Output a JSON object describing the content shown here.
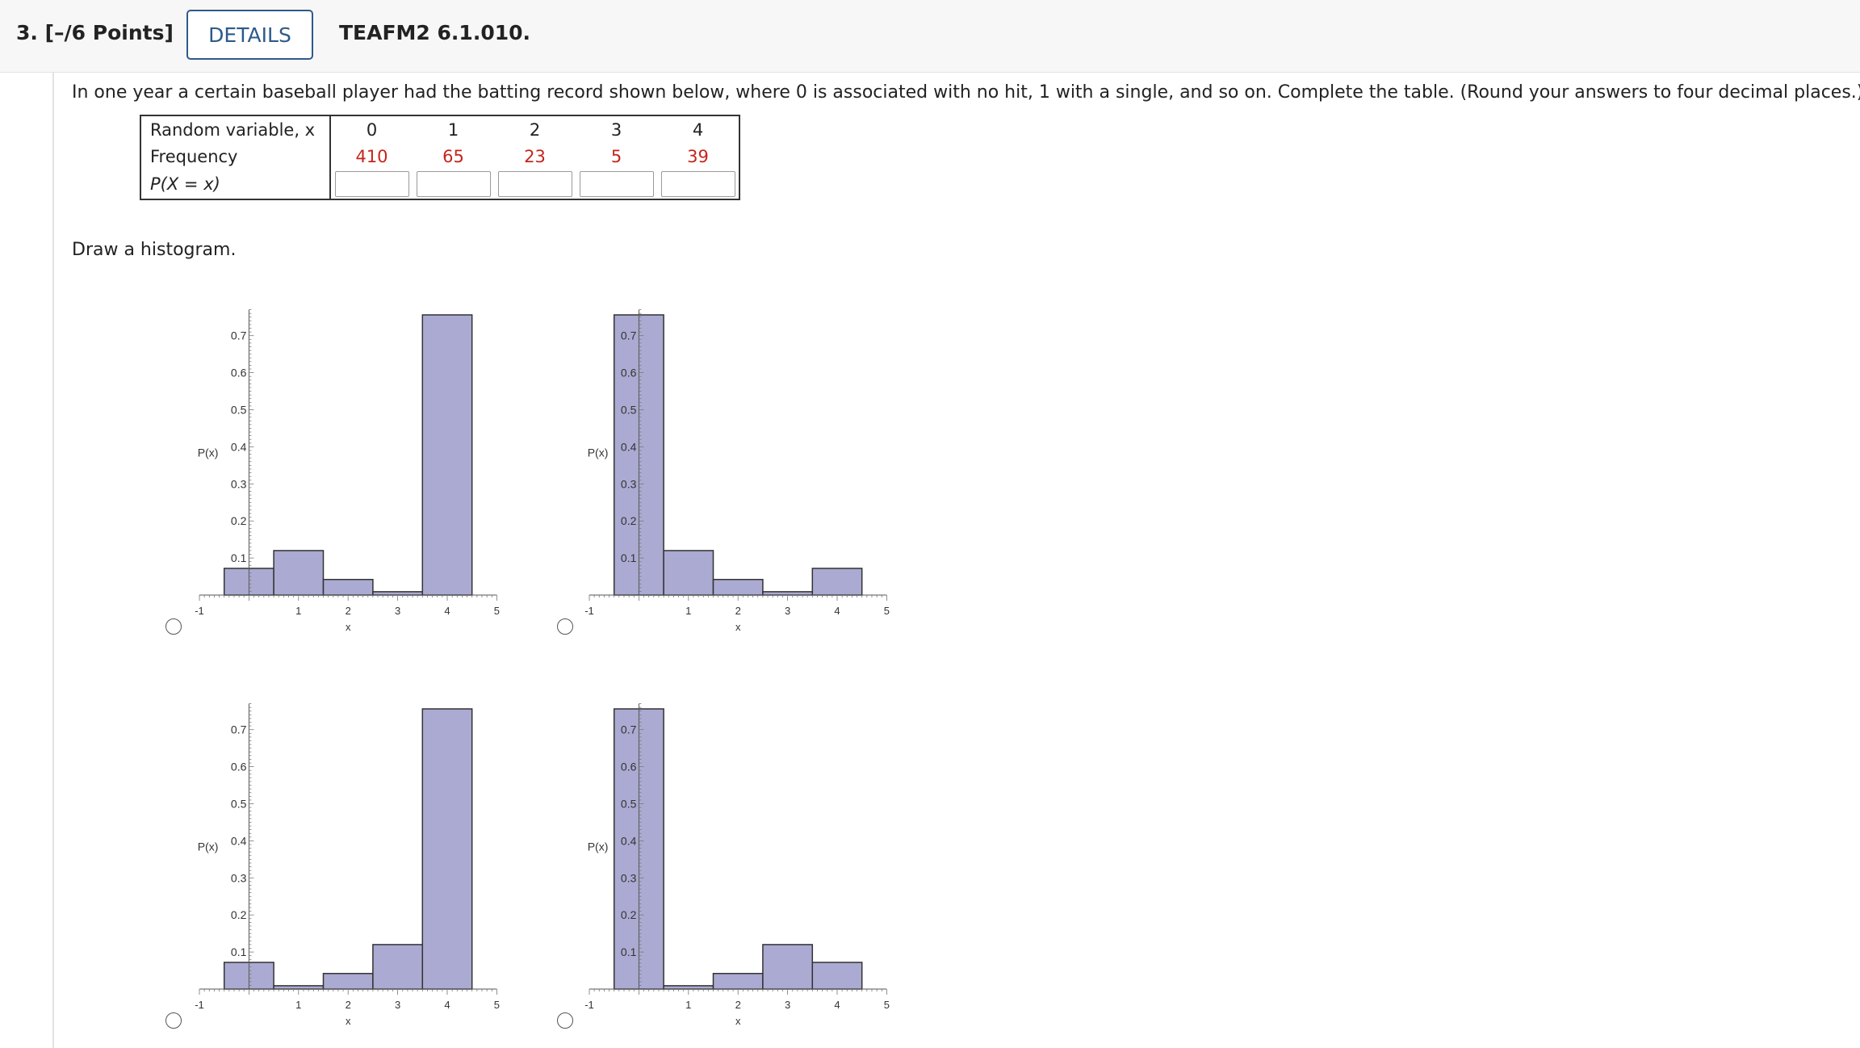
{
  "header": {
    "question_label": "3. [–/6 Points]",
    "details_label": "DETAILS",
    "question_id": "TEAFM2 6.1.010."
  },
  "instructions": "In one year a certain baseball player had the batting record shown below, where 0 is associated with no hit, 1 with a single, and so on. Complete the table. (Round your answers to four decimal places.)",
  "table": {
    "row_headers": {
      "random_variable": "Random variable, x",
      "frequency": "Frequency",
      "probability": "P(X = x)"
    },
    "x_values": [
      "0",
      "1",
      "2",
      "3",
      "4"
    ],
    "frequencies": [
      "410",
      "65",
      "23",
      "5",
      "39"
    ],
    "probability_inputs": [
      "",
      "",
      "",
      "",
      ""
    ]
  },
  "draw_prompt": "Draw a histogram.",
  "colors": {
    "bar_fill": "#abaad2",
    "bar_stroke": "#333333",
    "frequency_text": "#c5251c",
    "details_border": "#2d5a8a"
  },
  "chart_data": [
    {
      "type": "bar",
      "option": "A",
      "bin_edges": [
        -0.5,
        0.5,
        1.5,
        2.5,
        3.5,
        4.5
      ],
      "values": [
        0.072,
        0.12,
        0.042,
        0.009,
        0.756
      ],
      "xlabel": "x",
      "ylabel": "P(x)",
      "xlim": [
        -1,
        5
      ],
      "ylim": [
        0,
        0.77
      ],
      "x_ticks": [
        "-1",
        "1",
        "2",
        "3",
        "4",
        "5"
      ],
      "y_ticks": [
        "0.1",
        "0.2",
        "0.3",
        "0.4",
        "0.5",
        "0.6",
        "0.7"
      ]
    },
    {
      "type": "bar",
      "option": "B",
      "bin_edges": [
        -0.5,
        0.5,
        1.5,
        2.5,
        3.5,
        4.5
      ],
      "values": [
        0.756,
        0.12,
        0.042,
        0.009,
        0.072
      ],
      "xlabel": "x",
      "ylabel": "P(x)",
      "xlim": [
        -1,
        5
      ],
      "ylim": [
        0,
        0.77
      ],
      "x_ticks": [
        "-1",
        "1",
        "2",
        "3",
        "4",
        "5"
      ],
      "y_ticks": [
        "0.1",
        "0.2",
        "0.3",
        "0.4",
        "0.5",
        "0.6",
        "0.7"
      ]
    },
    {
      "type": "bar",
      "option": "C",
      "bin_edges": [
        -0.5,
        0.5,
        1.5,
        2.5,
        3.5,
        4.5
      ],
      "values": [
        0.072,
        0.009,
        0.042,
        0.12,
        0.756
      ],
      "xlabel": "x",
      "ylabel": "P(x)",
      "xlim": [
        -1,
        5
      ],
      "ylim": [
        0,
        0.77
      ],
      "x_ticks": [
        "-1",
        "1",
        "2",
        "3",
        "4",
        "5"
      ],
      "y_ticks": [
        "0.1",
        "0.2",
        "0.3",
        "0.4",
        "0.5",
        "0.6",
        "0.7"
      ]
    },
    {
      "type": "bar",
      "option": "D",
      "bin_edges": [
        -0.5,
        0.5,
        1.5,
        2.5,
        3.5,
        4.5
      ],
      "values": [
        0.756,
        0.009,
        0.042,
        0.12,
        0.072
      ],
      "xlabel": "x",
      "ylabel": "P(x)",
      "xlim": [
        -1,
        5
      ],
      "ylim": [
        0,
        0.77
      ],
      "x_ticks": [
        "-1",
        "1",
        "2",
        "3",
        "4",
        "5"
      ],
      "y_ticks": [
        "0.1",
        "0.2",
        "0.3",
        "0.4",
        "0.5",
        "0.6",
        "0.7"
      ]
    }
  ]
}
